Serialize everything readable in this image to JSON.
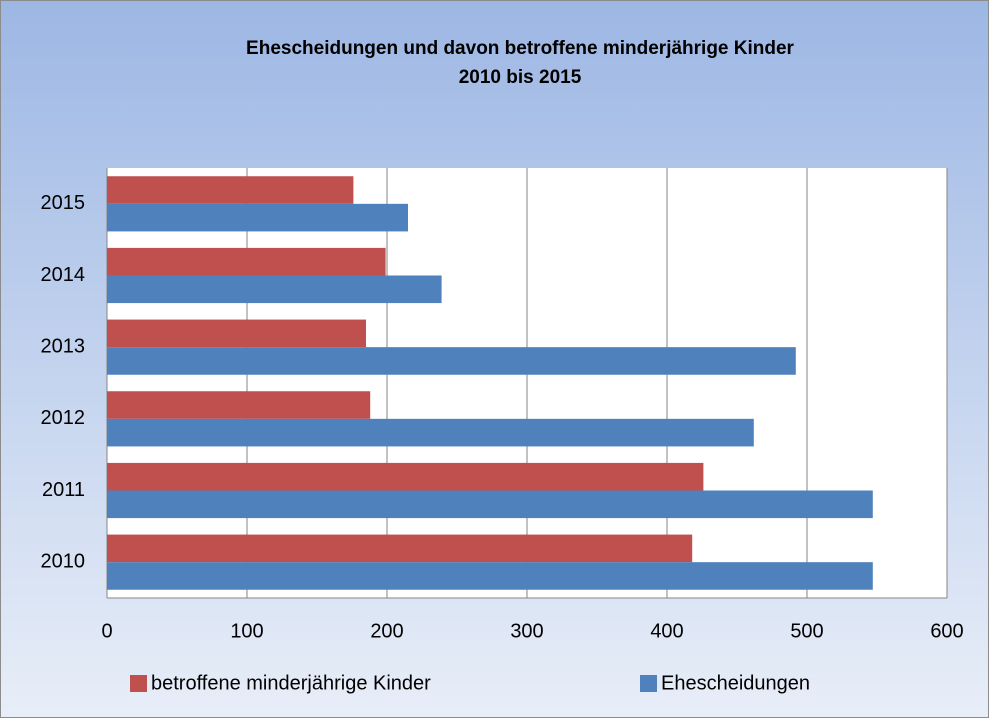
{
  "chart_data": {
    "type": "barh",
    "title": [
      "Ehescheidungen und davon betroffene minderjährige Kinder",
      "2010 bis 2015"
    ],
    "categories": [
      "2010",
      "2011",
      "2012",
      "2013",
      "2014",
      "2015"
    ],
    "series": [
      {
        "name": "betroffene minderjährige Kinder",
        "color": "#c0504d",
        "values": [
          418,
          426,
          188,
          185,
          199,
          176
        ]
      },
      {
        "name": "Ehescheidungen",
        "color": "#4f81bd",
        "values": [
          547,
          547,
          462,
          492,
          239,
          215
        ]
      }
    ],
    "xlim": [
      0,
      600
    ],
    "xticks": [
      0,
      100,
      200,
      300,
      400,
      500,
      600
    ],
    "grid": true,
    "legend": "bottom"
  }
}
